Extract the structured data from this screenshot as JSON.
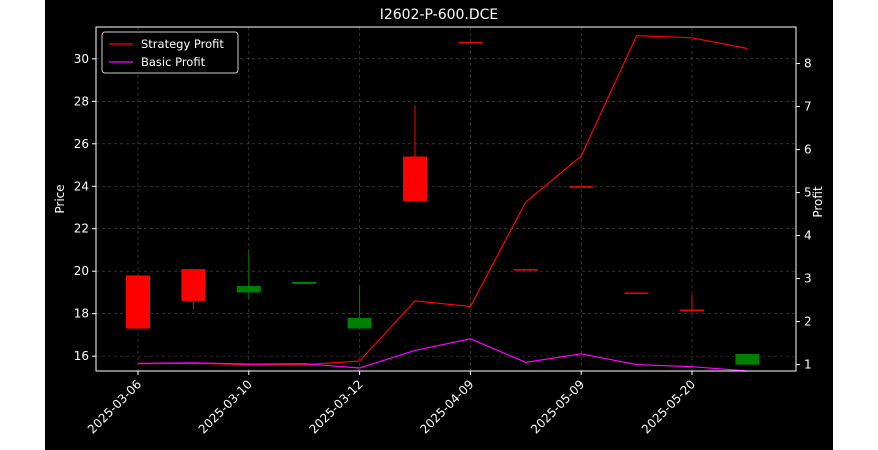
{
  "chart_data": {
    "type": "candlestick+line",
    "title": "I2602-P-600.DCE",
    "ylabel_left": "Price",
    "ylabel_right": "Profit",
    "ylim_left": [
      15.3,
      31.5
    ],
    "ylim_right": [
      0.85,
      8.85
    ],
    "left_ticks": [
      "16",
      "18",
      "20",
      "22",
      "24",
      "26",
      "28",
      "30"
    ],
    "right_ticks": [
      "1",
      "2",
      "3",
      "4",
      "5",
      "6",
      "7",
      "8"
    ],
    "x_tick_labels": [
      "2025-03-06",
      "2025-03-10",
      "2025-03-12",
      "2025-04-09",
      "2025-05-09",
      "2025-05-20"
    ],
    "x_tick_index": [
      0,
      2,
      4,
      6,
      8,
      10
    ],
    "grid": true,
    "legend_position": "top-left",
    "background": "#000000",
    "candles": [
      {
        "open": 19.8,
        "high": 19.8,
        "low": 17.3,
        "close": 17.3,
        "color": "#ff0000"
      },
      {
        "open": 20.1,
        "high": 20.1,
        "low": 18.2,
        "close": 18.6,
        "color": "#ff0000"
      },
      {
        "open": 19.0,
        "high": 21.0,
        "low": 18.7,
        "close": 19.3,
        "color": "#008000"
      },
      {
        "open": 19.4,
        "high": 19.5,
        "low": 19.4,
        "close": 19.5,
        "color": "#008000"
      },
      {
        "open": 17.3,
        "high": 19.3,
        "low": 17.3,
        "close": 17.8,
        "color": "#008000"
      },
      {
        "open": 25.4,
        "high": 27.8,
        "low": 23.3,
        "close": 23.3,
        "color": "#ff0000"
      },
      {
        "open": 30.8,
        "high": 30.8,
        "low": 30.8,
        "close": 30.8,
        "color": "#ff0000"
      },
      {
        "open": 20.1,
        "high": 20.1,
        "low": 20.1,
        "close": 20.1,
        "color": "#ff0000"
      },
      {
        "open": 24.0,
        "high": 24.0,
        "low": 24.0,
        "close": 24.0,
        "color": "#ff0000"
      },
      {
        "open": 19.0,
        "high": 19.0,
        "low": 19.0,
        "close": 19.0,
        "color": "#ff0000"
      },
      {
        "open": 18.2,
        "high": 18.9,
        "low": 18.2,
        "close": 18.2,
        "color": "#ff0000"
      },
      {
        "open": 15.6,
        "high": 16.1,
        "low": 15.6,
        "close": 16.1,
        "color": "#008000"
      }
    ],
    "series": [
      {
        "name": "Strategy Profit",
        "color": "#ff0000",
        "values": [
          1.02,
          1.03,
          1.0,
          1.0,
          1.08,
          2.48,
          2.35,
          4.78,
          5.85,
          8.65,
          8.6,
          8.35
        ]
      },
      {
        "name": "Basic Profit",
        "color": "#ff00ff",
        "values": [
          1.03,
          1.04,
          1.01,
          1.02,
          0.92,
          1.33,
          1.6,
          1.05,
          1.25,
          1.0,
          0.95,
          0.85
        ]
      }
    ]
  }
}
